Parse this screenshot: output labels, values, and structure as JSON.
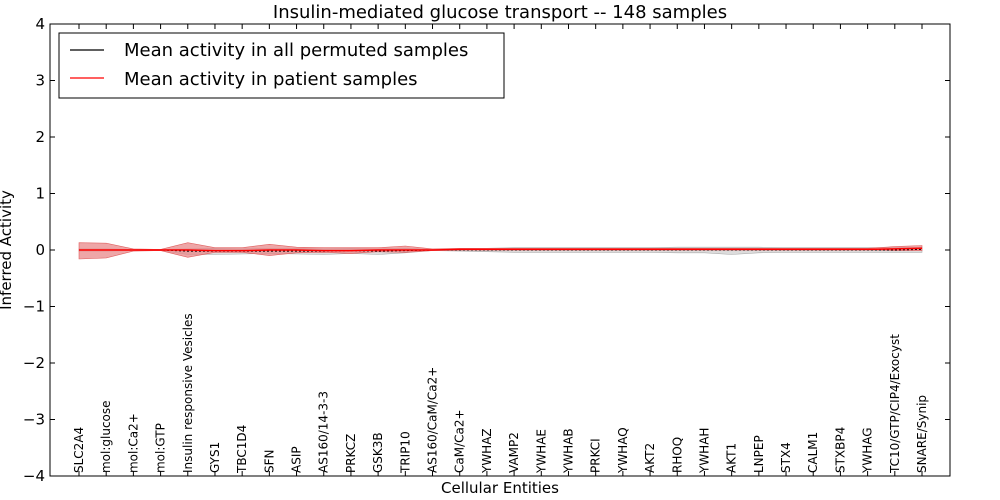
{
  "chart_data": {
    "type": "line",
    "title": "Insulin-mediated glucose transport -- 148 samples",
    "xlabel": "Cellular Entities",
    "ylabel": "Inferred Activity",
    "ylim": [
      -4,
      4
    ],
    "yticks": [
      4,
      3,
      2,
      1,
      0,
      -1,
      -2,
      -3,
      -4
    ],
    "ytick_labels": [
      "4",
      "3",
      "2",
      "1",
      "0",
      "−1",
      "−2",
      "−3",
      "−4"
    ],
    "grid": false,
    "legend_position": "top-left",
    "categories": [
      "SLC2A4",
      "mol:glucose",
      "mol:Ca2+",
      "mol:GTP",
      "Insulin responsive Vesicles",
      "GYS1",
      "TBC1D4",
      "SFN",
      "ASIP",
      "AS160/14-3-3",
      "PRKCZ",
      "GSK3B",
      "TRIP10",
      "AS160/CaM/Ca2+",
      "CaM/Ca2+",
      "YWHAZ",
      "VAMP2",
      "YWHAE",
      "YWHAB",
      "PRKCI",
      "YWHAQ",
      "AKT2",
      "RHOQ",
      "YWHAH",
      "AKT1",
      "LNPEP",
      "STX4",
      "CALM1",
      "STXBP4",
      "YWHAG",
      "TC10/GTP/CIP4/Exocyst",
      "SNARE/Synip"
    ],
    "series": [
      {
        "name": "Mean activity in all permuted samples",
        "color": "#000000",
        "band_color": "#bfbfbf",
        "values": [
          0.0,
          0.0,
          0.0,
          0.0,
          -0.02,
          -0.02,
          -0.02,
          -0.02,
          -0.02,
          -0.02,
          -0.01,
          -0.02,
          -0.01,
          0.0,
          0.0,
          0.0,
          0.0,
          0.0,
          0.0,
          0.0,
          0.0,
          0.0,
          0.0,
          0.0,
          0.0,
          0.0,
          0.0,
          0.0,
          0.0,
          0.0,
          0.0,
          0.01
        ],
        "lower": [
          -0.02,
          -0.02,
          -0.01,
          -0.01,
          -0.08,
          -0.08,
          -0.07,
          -0.06,
          -0.07,
          -0.08,
          -0.06,
          -0.08,
          -0.05,
          -0.01,
          -0.02,
          -0.03,
          -0.04,
          -0.04,
          -0.04,
          -0.04,
          -0.04,
          -0.04,
          -0.05,
          -0.05,
          -0.08,
          -0.05,
          -0.04,
          -0.04,
          -0.04,
          -0.04,
          -0.04,
          -0.04
        ],
        "upper": [
          0.02,
          0.02,
          0.01,
          0.01,
          0.02,
          0.03,
          0.02,
          0.03,
          0.03,
          0.02,
          0.03,
          0.02,
          0.03,
          0.01,
          0.02,
          0.03,
          0.04,
          0.04,
          0.04,
          0.04,
          0.04,
          0.04,
          0.05,
          0.05,
          0.05,
          0.05,
          0.04,
          0.04,
          0.04,
          0.04,
          0.04,
          0.05
        ]
      },
      {
        "name": "Mean activity in patient samples",
        "color": "#ff0000",
        "band_color": "#e8888a",
        "values": [
          0.0,
          0.0,
          0.0,
          0.0,
          0.0,
          -0.01,
          -0.01,
          0.0,
          0.0,
          -0.01,
          -0.01,
          0.0,
          0.0,
          0.0,
          0.01,
          0.01,
          0.01,
          0.01,
          0.01,
          0.01,
          0.01,
          0.01,
          0.01,
          0.01,
          0.01,
          0.01,
          0.01,
          0.01,
          0.01,
          0.01,
          0.02,
          0.03
        ],
        "lower": [
          -0.16,
          -0.14,
          -0.02,
          -0.01,
          -0.13,
          -0.04,
          -0.04,
          -0.1,
          -0.05,
          -0.04,
          -0.06,
          -0.03,
          -0.04,
          -0.01,
          0.0,
          0.0,
          0.0,
          0.0,
          0.0,
          0.0,
          0.0,
          0.0,
          0.0,
          0.0,
          0.0,
          0.0,
          0.0,
          0.0,
          0.0,
          0.0,
          -0.01,
          -0.01
        ],
        "upper": [
          0.13,
          0.12,
          0.02,
          0.01,
          0.13,
          0.04,
          0.04,
          0.1,
          0.05,
          0.04,
          0.04,
          0.04,
          0.07,
          0.02,
          0.03,
          0.03,
          0.03,
          0.03,
          0.03,
          0.03,
          0.03,
          0.03,
          0.03,
          0.03,
          0.03,
          0.03,
          0.03,
          0.03,
          0.03,
          0.03,
          0.06,
          0.08
        ]
      }
    ]
  }
}
